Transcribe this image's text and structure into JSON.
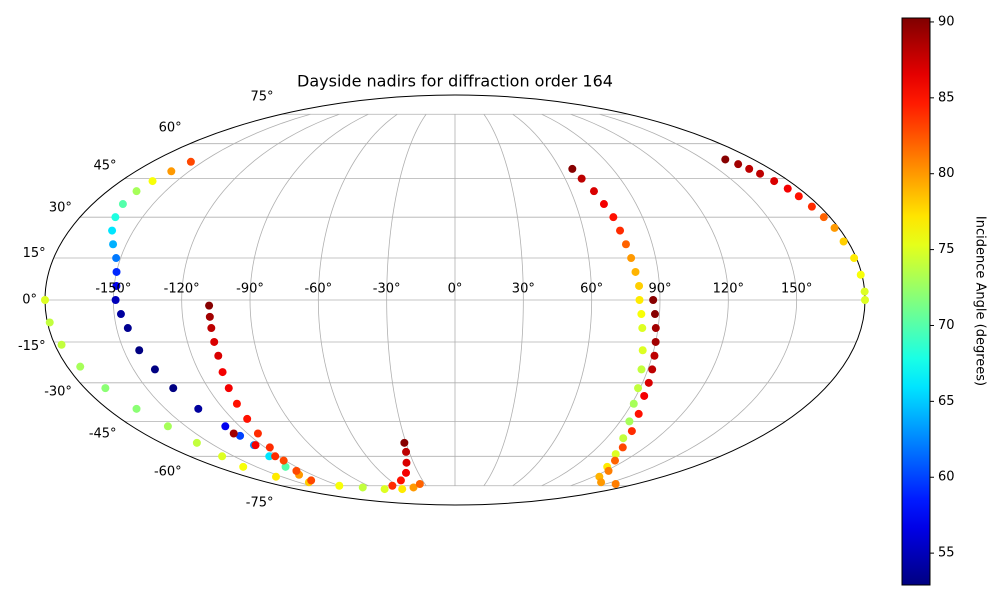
{
  "chart_data": {
    "type": "scatter",
    "projection": "mollweide",
    "title": "Dayside nadirs for diffraction order 164",
    "colorbar_label": "Incidence Angle (degrees)",
    "colormap": "jet",
    "clim": [
      52.9,
      90.26
    ],
    "cticks": [
      55,
      60,
      65,
      70,
      75,
      80,
      85,
      90
    ],
    "grid": true,
    "xlim": [
      -180,
      180
    ],
    "ylim": [
      -90,
      90
    ],
    "xticks": [
      {
        "value": -150,
        "label": "-150°"
      },
      {
        "value": -120,
        "label": "-120°"
      },
      {
        "value": -90,
        "label": "-90°"
      },
      {
        "value": -60,
        "label": "-60°"
      },
      {
        "value": -30,
        "label": "-30°"
      },
      {
        "value": 0,
        "label": "0°"
      },
      {
        "value": 30,
        "label": "30°"
      },
      {
        "value": 60,
        "label": "60°"
      },
      {
        "value": 90,
        "label": "90°"
      },
      {
        "value": 120,
        "label": "120°"
      },
      {
        "value": 150,
        "label": "150°"
      }
    ],
    "yticks": [
      {
        "value": -75,
        "label": "-75°"
      },
      {
        "value": -60,
        "label": "-60°"
      },
      {
        "value": -45,
        "label": "-45°"
      },
      {
        "value": -30,
        "label": "-30°"
      },
      {
        "value": -15,
        "label": "-15°"
      },
      {
        "value": 0,
        "label": "0°"
      },
      {
        "value": 15,
        "label": "15°"
      },
      {
        "value": 30,
        "label": "30°"
      },
      {
        "value": 45,
        "label": "45°"
      },
      {
        "value": 60,
        "label": "60°"
      },
      {
        "value": 75,
        "label": "75°"
      }
    ],
    "series": [
      {
        "x": [
          -180,
          -179,
          -177,
          -174,
          -170,
          -165,
          -160,
          -158,
          -158,
          -160,
          -155,
          -140,
          -120,
          -100,
          -80,
          -60,
          -45,
          -35
        ],
        "y": [
          0,
          -8,
          -16,
          -24,
          -32,
          -40,
          -47,
          -54,
          -60,
          -65,
          -70,
          -73,
          -75,
          -76,
          -77,
          -77,
          -76,
          -74
        ],
        "c": [
          75,
          74,
          74,
          73,
          72,
          72,
          73,
          74,
          75,
          76,
          77,
          78,
          76,
          74,
          75,
          77,
          80,
          82
        ]
      },
      {
        "x": [
          -157,
          -160,
          -163,
          -165,
          -165,
          -163,
          -160,
          -156,
          -152,
          -150,
          -149,
          -149,
          -147,
          -145,
          -143,
          -140,
          -137,
          -133,
          -128,
          -126,
          -125,
          -126,
          -128,
          -131,
          -133
        ],
        "y": [
          52,
          48,
          44,
          40,
          35,
          30,
          25,
          20,
          15,
          10,
          5,
          0,
          -5,
          -10,
          -18,
          -25,
          -32,
          -40,
          -47,
          -51,
          -55,
          -60,
          -65,
          -69,
          -72
        ],
        "c": [
          83,
          80,
          76,
          73,
          70,
          68,
          66,
          64,
          62,
          59,
          57,
          55,
          54,
          53.5,
          53,
          53,
          53,
          54,
          57,
          60,
          63,
          66,
          70,
          80,
          83
        ]
      },
      {
        "x": [
          -108,
          -108,
          -108,
          -108,
          -108,
          -109,
          -110,
          -111,
          -112,
          -114,
          -117,
          -121,
          -126
        ],
        "y": [
          -2,
          -6,
          -10,
          -15,
          -20,
          -26,
          -32,
          -38,
          -44,
          -50,
          -56,
          -62,
          -67
        ],
        "c": [
          90,
          89,
          88,
          87,
          87,
          86,
          86,
          85,
          85,
          84,
          84,
          83,
          83
        ]
      },
      {
        "x": [
          -128,
          -124,
          -122
        ],
        "y": [
          -50,
          -55,
          -60
        ],
        "c": [
          89,
          86,
          84
        ]
      },
      {
        "x": [
          -31,
          -32,
          -35,
          -40,
          -50,
          -65
        ],
        "y": [
          -54,
          -58,
          -63,
          -68,
          -72,
          -75
        ],
        "c": [
          90,
          88,
          87,
          86,
          85,
          84
        ]
      },
      {
        "x": [
          67,
          69,
          72,
          74,
          76,
          77,
          78,
          79,
          80,
          81,
          81,
          82,
          83,
          85,
          87,
          89,
          91,
          95,
          100,
          107,
          115,
          125,
          140,
          160
        ],
        "y": [
          49,
          45,
          40,
          35,
          30,
          25,
          20,
          15,
          10,
          5,
          0,
          -5,
          -10,
          -18,
          -25,
          -32,
          -38,
          -45,
          -52,
          -59,
          -65,
          -70,
          -73,
          -74
        ],
        "c": [
          90,
          88,
          87,
          86,
          85,
          84,
          82,
          80,
          79,
          78,
          77,
          76,
          75,
          75,
          74,
          74,
          73,
          73,
          74,
          75,
          77,
          79,
          80,
          81
        ]
      },
      {
        "x": [
          87,
          88,
          89,
          90,
          91,
          92,
          93,
          94,
          97,
          101,
          106,
          113,
          122
        ],
        "y": [
          0,
          -5,
          -10,
          -15,
          -20,
          -25,
          -30,
          -35,
          -42,
          -49,
          -56,
          -62,
          -67
        ],
        "c": [
          90,
          90,
          89,
          89,
          88,
          88,
          87,
          86,
          85,
          84,
          83,
          82,
          81
        ]
      },
      {
        "x": [
          163,
          166,
          168,
          170,
          172,
          174,
          175,
          176,
          177,
          178,
          178,
          179,
          179.5,
          180,
          180
        ],
        "y": [
          53,
          51,
          49,
          47,
          44,
          41,
          38,
          34,
          30,
          26,
          21,
          15,
          9,
          3,
          0
        ],
        "c": [
          90,
          89,
          88,
          88,
          87,
          86,
          85,
          84,
          82,
          80,
          78,
          77,
          76,
          75,
          75
        ]
      }
    ]
  }
}
